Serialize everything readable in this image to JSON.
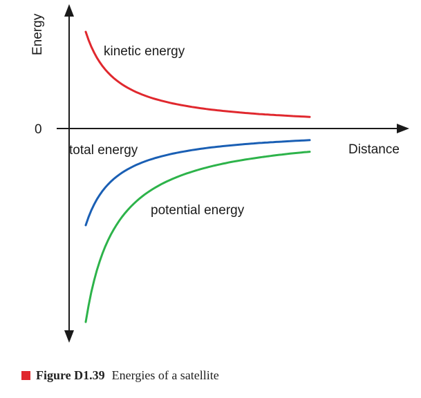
{
  "chart_data": {
    "type": "line",
    "title": "",
    "xlabel": "Distance",
    "ylabel": "Energy",
    "y_zero_label": "0",
    "xlim": [
      0,
      10
    ],
    "ylim": [
      -10,
      5
    ],
    "grid": false,
    "legend": "none",
    "series": [
      {
        "name": "kinetic energy",
        "color": "#e0282e",
        "x": [
          1.2,
          1.5,
          2,
          3,
          4,
          5,
          6,
          7,
          8,
          9,
          10
        ],
        "values": [
          5.0,
          4.0,
          3.0,
          2.0,
          1.5,
          1.2,
          1.0,
          0.86,
          0.75,
          0.67,
          0.6
        ]
      },
      {
        "name": "total energy",
        "color": "#1a5fb4",
        "x": [
          1.2,
          1.5,
          2,
          3,
          4,
          5,
          6,
          7,
          8,
          9,
          10
        ],
        "values": [
          -5.0,
          -4.0,
          -3.0,
          -2.0,
          -1.5,
          -1.2,
          -1.0,
          -0.86,
          -0.75,
          -0.67,
          -0.6
        ]
      },
      {
        "name": "potential energy",
        "color": "#2db34a",
        "x": [
          1.2,
          1.5,
          2,
          3,
          4,
          5,
          6,
          7,
          8,
          9,
          10
        ],
        "values": [
          -10.0,
          -8.0,
          -6.0,
          -4.0,
          -3.0,
          -2.4,
          -2.0,
          -1.71,
          -1.5,
          -1.33,
          -1.2
        ]
      }
    ]
  },
  "caption": {
    "label": "Figure D1.39",
    "text": "Energies of a satellite",
    "marker_color": "#e0282e"
  }
}
